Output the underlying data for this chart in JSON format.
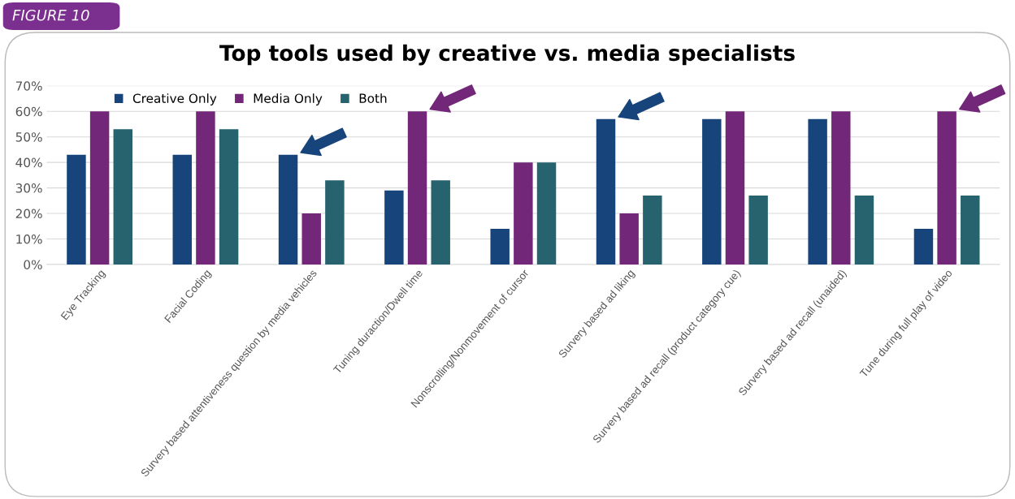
{
  "chart_data": {
    "type": "bar",
    "title": "Top tools used by creative vs. media specialists",
    "categories": [
      "Eye Tracking",
      "Facial Coding",
      "Survery based attentiveness question by media vehicles",
      "Tuning duraction/Dwell time",
      "Nonscrolling/Nonmovement of cursor",
      "Survery based ad liking",
      "Survery based ad recall (product category cue)",
      "Survery based ad recall (unaided)",
      "Tune during full play of video"
    ],
    "series": [
      {
        "name": "Creative Only",
        "color": "#17457b",
        "values": [
          43,
          43,
          43,
          29,
          14,
          57,
          57,
          57,
          14
        ]
      },
      {
        "name": "Media Only",
        "color": "#722779",
        "values": [
          60,
          60,
          20,
          60,
          40,
          20,
          60,
          60,
          60
        ]
      },
      {
        "name": "Both",
        "color": "#27636e",
        "values": [
          53,
          53,
          33,
          33,
          40,
          27,
          27,
          27,
          27
        ]
      }
    ],
    "ylim": [
      0,
      70
    ],
    "yticks": [
      {
        "value": 0,
        "label": "0%"
      },
      {
        "value": 10,
        "label": "10%"
      },
      {
        "value": 20,
        "label": "20%"
      },
      {
        "value": 30,
        "label": "30%"
      },
      {
        "value": 40,
        "label": "40%"
      },
      {
        "value": 50,
        "label": "50%"
      },
      {
        "value": 60,
        "label": "60%"
      },
      {
        "value": 70,
        "label": "70%"
      }
    ],
    "grid": "y",
    "legend": "top left",
    "annotations": [
      "FIGURE 10"
    ]
  }
}
